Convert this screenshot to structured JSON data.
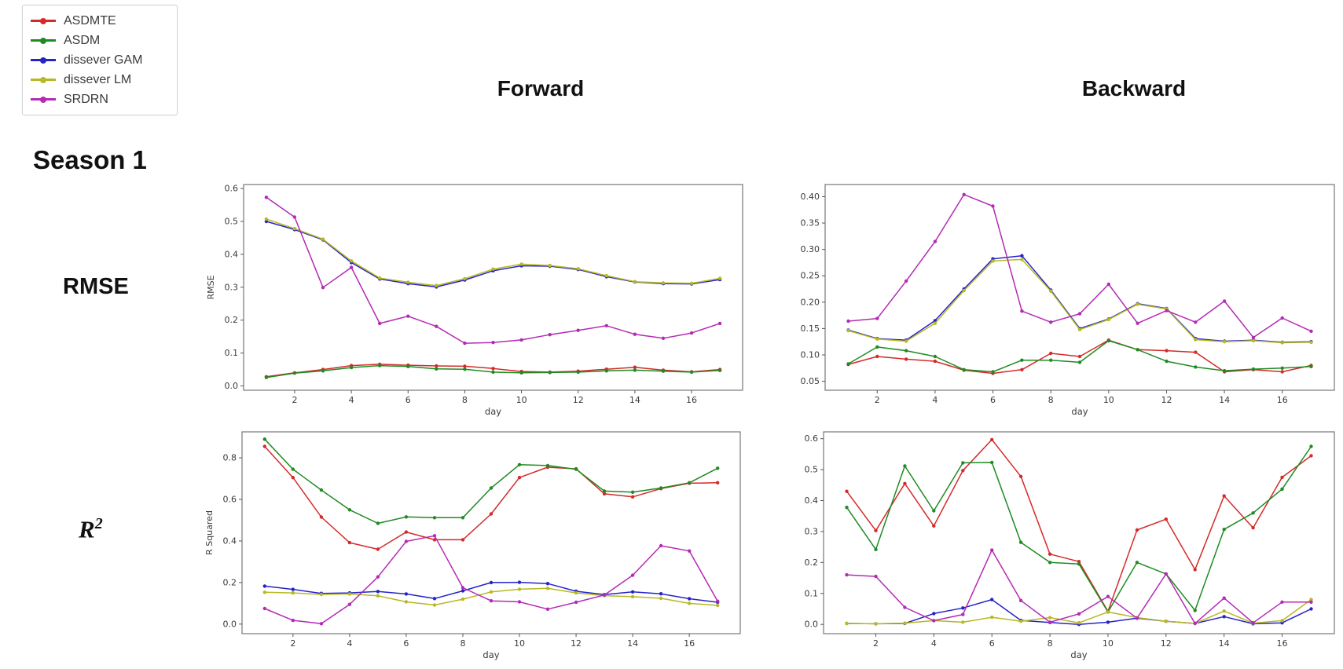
{
  "legend": {
    "items": [
      {
        "label": "ASDMTE",
        "color": "#d42a2a"
      },
      {
        "label": "ASDM",
        "color": "#1f8b22"
      },
      {
        "label": "dissever GAM",
        "color": "#2424c8"
      },
      {
        "label": "dissever LM",
        "color": "#b8b824"
      },
      {
        "label": "SRDRN",
        "color": "#b52ab5"
      }
    ]
  },
  "headers": {
    "column_left": "Forward",
    "column_right": "Backward",
    "season": "Season 1",
    "row_top": "RMSE",
    "row_bottom_base": "R",
    "row_bottom_sup": "2"
  },
  "chart_data": [
    {
      "id": "forward-rmse",
      "type": "line",
      "panel": "Forward",
      "metric": "RMSE",
      "xlabel": "day",
      "ylabel": "RMSE",
      "x": [
        1,
        2,
        3,
        4,
        5,
        6,
        7,
        8,
        9,
        10,
        11,
        12,
        13,
        14,
        15,
        16,
        17
      ],
      "xticks": [
        2,
        4,
        6,
        8,
        10,
        12,
        14,
        16
      ],
      "yticks": [
        0.0,
        0.1,
        0.2,
        0.3,
        0.4,
        0.5,
        0.6
      ],
      "ytick_labels": [
        "0.0",
        "0.1",
        "0.2",
        "0.3",
        "0.4",
        "0.5",
        "0.6"
      ],
      "xlim": [
        0.2,
        17.8
      ],
      "ylim": [
        -0.013,
        0.612
      ],
      "grid": false,
      "series": [
        {
          "name": "ASDMTE",
          "color": "#d42a2a",
          "values": [
            0.028,
            0.04,
            0.05,
            0.062,
            0.066,
            0.063,
            0.061,
            0.06,
            0.053,
            0.044,
            0.042,
            0.045,
            0.051,
            0.057,
            0.048,
            0.043,
            0.05
          ]
        },
        {
          "name": "ASDM",
          "color": "#1f8b22",
          "values": [
            0.026,
            0.039,
            0.046,
            0.056,
            0.062,
            0.059,
            0.052,
            0.051,
            0.042,
            0.04,
            0.041,
            0.042,
            0.046,
            0.048,
            0.045,
            0.042,
            0.047
          ]
        },
        {
          "name": "dissever GAM",
          "color": "#2424c8",
          "values": [
            0.5,
            0.475,
            0.444,
            0.375,
            0.325,
            0.311,
            0.301,
            0.322,
            0.35,
            0.365,
            0.364,
            0.354,
            0.332,
            0.316,
            0.311,
            0.31,
            0.323
          ]
        },
        {
          "name": "dissever LM",
          "color": "#b8b824",
          "values": [
            0.507,
            0.478,
            0.446,
            0.38,
            0.328,
            0.315,
            0.305,
            0.326,
            0.355,
            0.37,
            0.366,
            0.356,
            0.335,
            0.317,
            0.313,
            0.312,
            0.327
          ]
        },
        {
          "name": "SRDRN",
          "color": "#b52ab5",
          "values": [
            0.573,
            0.513,
            0.299,
            0.36,
            0.19,
            0.212,
            0.181,
            0.13,
            0.132,
            0.14,
            0.156,
            0.169,
            0.183,
            0.157,
            0.145,
            0.161,
            0.19
          ]
        }
      ]
    },
    {
      "id": "backward-rmse",
      "type": "line",
      "panel": "Backward",
      "metric": "RMSE",
      "xlabel": "day",
      "ylabel": "",
      "x": [
        1,
        2,
        3,
        4,
        5,
        6,
        7,
        8,
        9,
        10,
        11,
        12,
        13,
        14,
        15,
        16,
        17
      ],
      "xticks": [
        2,
        4,
        6,
        8,
        10,
        12,
        14,
        16
      ],
      "yticks": [
        0.05,
        0.1,
        0.15,
        0.2,
        0.25,
        0.3,
        0.35,
        0.4
      ],
      "ytick_labels": [
        "0.05",
        "0.10",
        "0.15",
        "0.20",
        "0.25",
        "0.30",
        "0.35",
        "0.40"
      ],
      "xlim": [
        0.2,
        17.8
      ],
      "ylim": [
        0.033,
        0.423
      ],
      "grid": false,
      "series": [
        {
          "name": "ASDMTE",
          "color": "#d42a2a",
          "values": [
            0.082,
            0.097,
            0.092,
            0.088,
            0.071,
            0.065,
            0.072,
            0.103,
            0.097,
            0.128,
            0.11,
            0.108,
            0.105,
            0.068,
            0.072,
            0.068,
            0.08
          ]
        },
        {
          "name": "ASDM",
          "color": "#1f8b22",
          "values": [
            0.083,
            0.115,
            0.108,
            0.097,
            0.072,
            0.068,
            0.09,
            0.09,
            0.086,
            0.127,
            0.11,
            0.088,
            0.077,
            0.07,
            0.073,
            0.075,
            0.078
          ]
        },
        {
          "name": "dissever GAM",
          "color": "#2424c8",
          "values": [
            0.147,
            0.131,
            0.128,
            0.165,
            0.225,
            0.282,
            0.288,
            0.223,
            0.15,
            0.168,
            0.197,
            0.188,
            0.131,
            0.126,
            0.128,
            0.124,
            0.125
          ]
        },
        {
          "name": "dissever LM",
          "color": "#b8b824",
          "values": [
            0.146,
            0.13,
            0.126,
            0.16,
            0.222,
            0.278,
            0.281,
            0.221,
            0.148,
            0.167,
            0.196,
            0.187,
            0.129,
            0.125,
            0.127,
            0.123,
            0.124
          ]
        },
        {
          "name": "SRDRN",
          "color": "#b52ab5",
          "values": [
            0.164,
            0.169,
            0.24,
            0.315,
            0.404,
            0.382,
            0.183,
            0.162,
            0.178,
            0.234,
            0.16,
            0.184,
            0.162,
            0.202,
            0.133,
            0.17,
            0.145
          ]
        }
      ]
    },
    {
      "id": "forward-r2",
      "type": "line",
      "panel": "Forward",
      "metric": "R Squared",
      "xlabel": "day",
      "ylabel": "R Squared",
      "x": [
        1,
        2,
        3,
        4,
        5,
        6,
        7,
        8,
        9,
        10,
        11,
        12,
        13,
        14,
        15,
        16,
        17
      ],
      "xticks": [
        2,
        4,
        6,
        8,
        10,
        12,
        14,
        16
      ],
      "yticks": [
        0.0,
        0.2,
        0.4,
        0.6,
        0.8
      ],
      "ytick_labels": [
        "0.0",
        "0.2",
        "0.4",
        "0.6",
        "0.8"
      ],
      "xlim": [
        0.2,
        17.8
      ],
      "ylim": [
        -0.046,
        0.925
      ],
      "grid": false,
      "series": [
        {
          "name": "ASDMTE",
          "color": "#d42a2a",
          "values": [
            0.855,
            0.705,
            0.515,
            0.392,
            0.36,
            0.443,
            0.406,
            0.406,
            0.53,
            0.705,
            0.755,
            0.747,
            0.627,
            0.612,
            0.652,
            0.678,
            0.68
          ]
        },
        {
          "name": "ASDM",
          "color": "#1f8b22",
          "values": [
            0.89,
            0.745,
            0.645,
            0.55,
            0.485,
            0.516,
            0.512,
            0.512,
            0.655,
            0.767,
            0.763,
            0.745,
            0.64,
            0.635,
            0.655,
            0.68,
            0.75
          ]
        },
        {
          "name": "dissever GAM",
          "color": "#2424c8",
          "values": [
            0.183,
            0.167,
            0.148,
            0.15,
            0.157,
            0.145,
            0.123,
            0.16,
            0.2,
            0.201,
            0.195,
            0.158,
            0.142,
            0.155,
            0.146,
            0.122,
            0.105
          ]
        },
        {
          "name": "dissever LM",
          "color": "#b8b824",
          "values": [
            0.153,
            0.15,
            0.143,
            0.145,
            0.136,
            0.107,
            0.092,
            0.12,
            0.155,
            0.168,
            0.172,
            0.15,
            0.137,
            0.132,
            0.124,
            0.1,
            0.09
          ]
        },
        {
          "name": "SRDRN",
          "color": "#b52ab5",
          "values": [
            0.075,
            0.018,
            0.002,
            0.095,
            0.227,
            0.398,
            0.425,
            0.175,
            0.112,
            0.107,
            0.072,
            0.105,
            0.14,
            0.235,
            0.377,
            0.352,
            0.11
          ]
        }
      ]
    },
    {
      "id": "backward-r2",
      "type": "line",
      "panel": "Backward",
      "metric": "R Squared",
      "xlabel": "day",
      "ylabel": "",
      "x": [
        1,
        2,
        3,
        4,
        5,
        6,
        7,
        8,
        9,
        10,
        11,
        12,
        13,
        14,
        15,
        16,
        17
      ],
      "xticks": [
        2,
        4,
        6,
        8,
        10,
        12,
        14,
        16
      ],
      "yticks": [
        0.0,
        0.1,
        0.2,
        0.3,
        0.4,
        0.5,
        0.6
      ],
      "ytick_labels": [
        "0.0",
        "0.1",
        "0.2",
        "0.3",
        "0.4",
        "0.5",
        "0.6"
      ],
      "xlim": [
        0.2,
        17.8
      ],
      "ylim": [
        -0.03,
        0.622
      ],
      "grid": false,
      "series": [
        {
          "name": "ASDMTE",
          "color": "#d42a2a",
          "values": [
            0.43,
            0.303,
            0.455,
            0.318,
            0.497,
            0.597,
            0.478,
            0.227,
            0.203,
            0.042,
            0.305,
            0.34,
            0.177,
            0.415,
            0.312,
            0.475,
            0.545
          ]
        },
        {
          "name": "ASDM",
          "color": "#1f8b22",
          "values": [
            0.378,
            0.242,
            0.512,
            0.367,
            0.522,
            0.523,
            0.265,
            0.2,
            0.195,
            0.04,
            0.2,
            0.163,
            0.045,
            0.307,
            0.36,
            0.437,
            0.575
          ]
        },
        {
          "name": "dissever GAM",
          "color": "#2424c8",
          "values": [
            0.003,
            0.002,
            0.003,
            0.035,
            0.053,
            0.08,
            0.013,
            0.006,
            0.0,
            0.007,
            0.02,
            0.01,
            0.003,
            0.025,
            0.002,
            0.005,
            0.05
          ]
        },
        {
          "name": "dissever LM",
          "color": "#b8b824",
          "values": [
            0.003,
            0.002,
            0.004,
            0.012,
            0.007,
            0.023,
            0.01,
            0.022,
            0.005,
            0.04,
            0.022,
            0.01,
            0.003,
            0.043,
            0.004,
            0.012,
            0.08
          ]
        },
        {
          "name": "SRDRN",
          "color": "#b52ab5",
          "values": [
            0.16,
            0.155,
            0.055,
            0.012,
            0.032,
            0.24,
            0.077,
            0.007,
            0.034,
            0.09,
            0.02,
            0.163,
            0.003,
            0.085,
            0.005,
            0.072,
            0.072
          ]
        }
      ]
    }
  ]
}
